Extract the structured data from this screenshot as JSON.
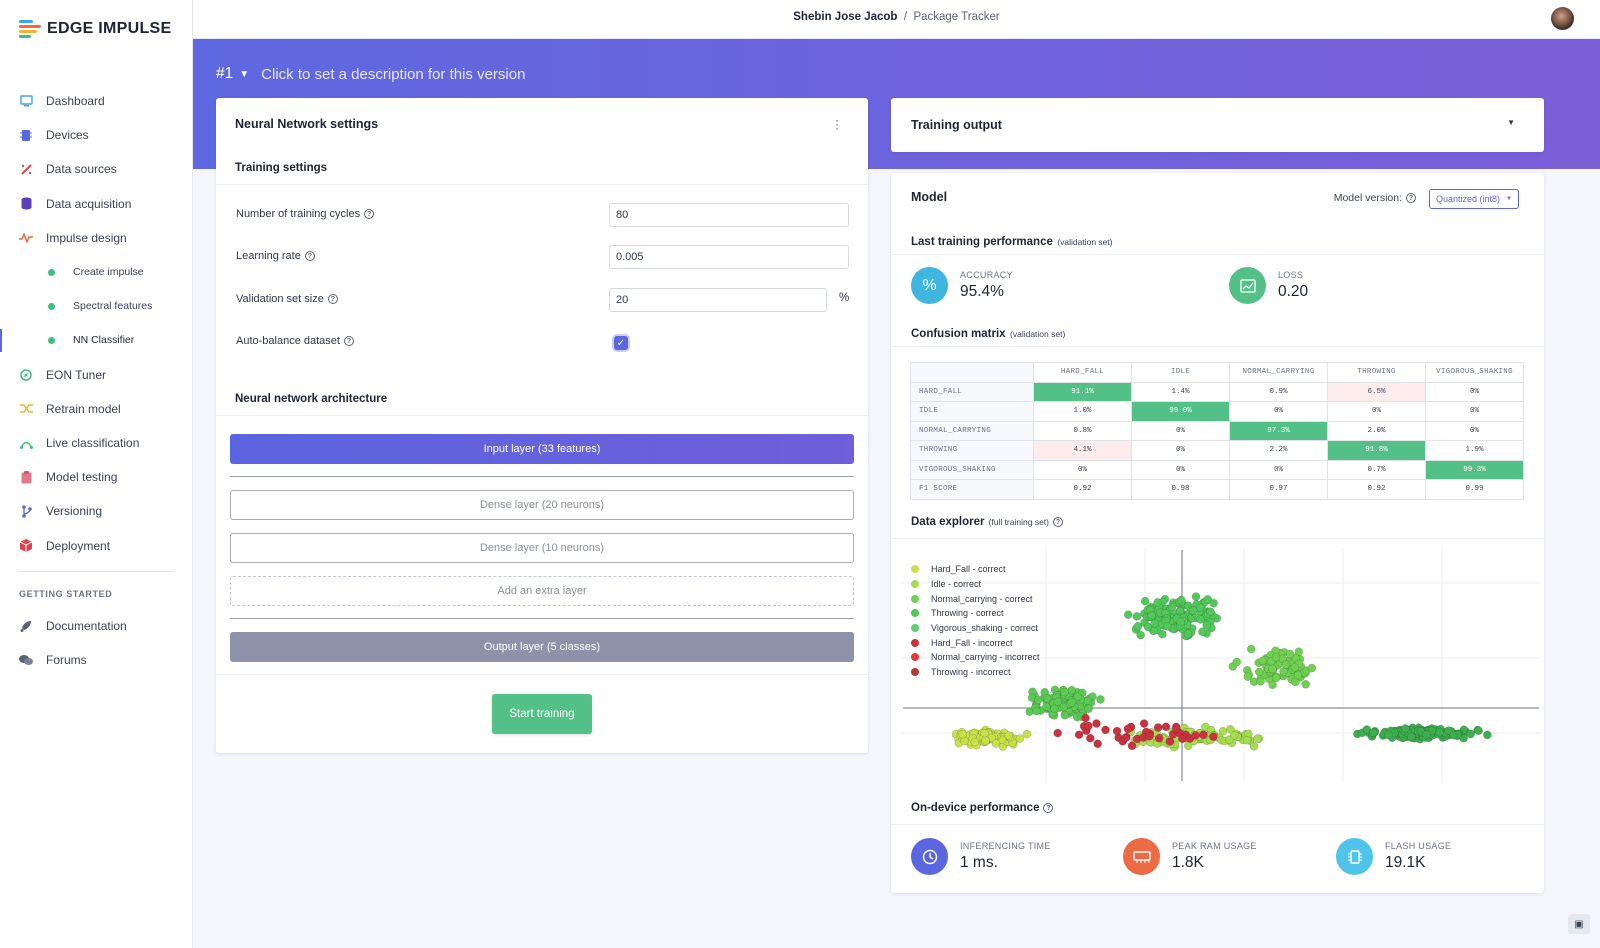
{
  "app": {
    "name": "EDGE IMPULSE"
  },
  "breadcrumb": {
    "user": "Shebin Jose Jacob",
    "separator": "/",
    "project": "Package Tracker"
  },
  "sidebar": {
    "items": [
      {
        "label": "Dashboard",
        "icon": "monitor-icon",
        "color": "#3aa7e0"
      },
      {
        "label": "Devices",
        "icon": "chip-icon",
        "color": "#5b66e0"
      },
      {
        "label": "Data sources",
        "icon": "wand-icon",
        "color": "#e0434f"
      },
      {
        "label": "Data acquisition",
        "icon": "database-icon",
        "color": "#5b3fb8"
      },
      {
        "label": "Impulse design",
        "icon": "pulse-icon",
        "color": "#f06b3b"
      },
      {
        "label": "Create impulse",
        "sub": true
      },
      {
        "label": "Spectral features",
        "sub": true
      },
      {
        "label": "NN Classifier",
        "sub": true,
        "active": true
      },
      {
        "label": "EON Tuner",
        "icon": "compass-icon",
        "color": "#3fbf7f"
      },
      {
        "label": "Retrain model",
        "icon": "shuffle-icon",
        "color": "#f2b233"
      },
      {
        "label": "Live classification",
        "icon": "network-icon",
        "color": "#3fbf7f"
      },
      {
        "label": "Model testing",
        "icon": "clipboard-icon",
        "color": "#e07a8a"
      },
      {
        "label": "Versioning",
        "icon": "branch-icon",
        "color": "#5b66e0"
      },
      {
        "label": "Deployment",
        "icon": "cube-icon",
        "color": "#e0434f"
      }
    ],
    "section_title": "GETTING STARTED",
    "getting_started": [
      {
        "label": "Documentation",
        "icon": "rocket-icon"
      },
      {
        "label": "Forums",
        "icon": "chat-icon"
      }
    ]
  },
  "version": {
    "number": "#1",
    "description": "Click to set a description for this version"
  },
  "nn_settings": {
    "title": "Neural Network settings",
    "training_title": "Training settings",
    "fields": {
      "cycles_label": "Number of training cycles",
      "cycles_value": "80",
      "lr_label": "Learning rate",
      "lr_value": "0.005",
      "val_label": "Validation set size",
      "val_value": "20",
      "val_unit": "%",
      "balance_label": "Auto-balance dataset"
    },
    "auto_balance": true,
    "arch_title": "Neural network architecture",
    "layers": {
      "input": "Input layer (33 features)",
      "dense1": "Dense layer (20 neurons)",
      "dense2": "Dense layer (10 neurons)",
      "extra": "Add an extra layer",
      "output": "Output layer (5 classes)"
    },
    "start_button": "Start training"
  },
  "training_output": {
    "title": "Training output"
  },
  "model": {
    "title": "Model",
    "version_label": "Model version:",
    "version_value": "Quantized (int8)",
    "last_perf_title": "Last training performance",
    "last_perf_sub": "(validation set)",
    "accuracy_label": "ACCURACY",
    "accuracy_value": "95.4%",
    "loss_label": "LOSS",
    "loss_value": "0.20",
    "cm_title": "Confusion matrix",
    "cm_sub": "(validation set)",
    "explorer_title": "Data explorer",
    "explorer_sub": "(full training set)",
    "ondevice_title": "On-device performance",
    "inference_label": "INFERENCING TIME",
    "inference_value": "1 ms.",
    "ram_label": "PEAK RAM USAGE",
    "ram_value": "1.8K",
    "flash_label": "FLASH USAGE",
    "flash_value": "19.1K"
  },
  "confusion_matrix": {
    "columns": [
      "HARD_FALL",
      "IDLE",
      "NORMAL_CARRYING",
      "THROWING",
      "VIGOROUS_SHAKING"
    ],
    "rows": [
      {
        "label": "HARD_FALL",
        "cells": [
          "91.1%",
          "1.4%",
          "0.9%",
          "6.5%",
          "0%"
        ]
      },
      {
        "label": "IDLE",
        "cells": [
          "1.0%",
          "99.0%",
          "0%",
          "0%",
          "0%"
        ]
      },
      {
        "label": "NORMAL_CARRYING",
        "cells": [
          "0.8%",
          "0%",
          "97.3%",
          "2.0%",
          "0%"
        ]
      },
      {
        "label": "THROWING",
        "cells": [
          "4.1%",
          "0%",
          "2.2%",
          "91.8%",
          "1.9%"
        ]
      },
      {
        "label": "VIGOROUS_SHAKING",
        "cells": [
          "0%",
          "0%",
          "0%",
          "0.7%",
          "99.3%"
        ]
      },
      {
        "label": "F1 SCORE",
        "cells": [
          "0.92",
          "0.98",
          "0.97",
          "0.92",
          "0.99"
        ]
      }
    ]
  },
  "legend": [
    {
      "label": "Hard_Fall - correct",
      "color": "#c8e04a"
    },
    {
      "label": "Idle - correct",
      "color": "#a6dc50"
    },
    {
      "label": "Normal_carrying - correct",
      "color": "#6fd052"
    },
    {
      "label": "Throwing - correct",
      "color": "#52c85a"
    },
    {
      "label": "Vigorous_shaking - correct",
      "color": "#5ad070"
    },
    {
      "label": "Hard_Fall - incorrect",
      "color": "#c8333f"
    },
    {
      "label": "Normal_carrying - incorrect",
      "color": "#e03a3a"
    },
    {
      "label": "Throwing - incorrect",
      "color": "#b83a32"
    }
  ],
  "colors": {
    "accent": "#5b66e0",
    "success": "#53c187"
  }
}
